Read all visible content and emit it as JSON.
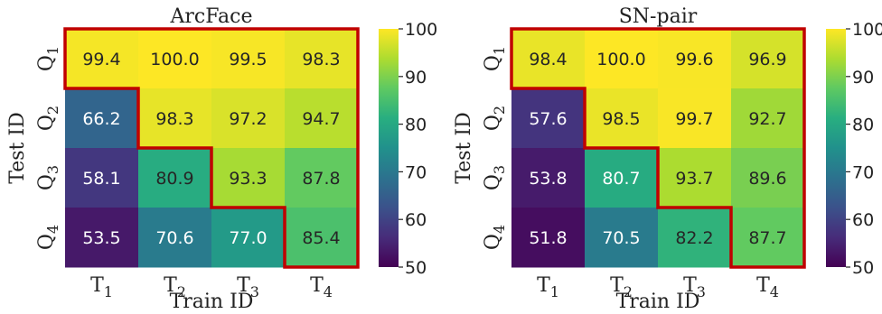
{
  "chart_data": [
    {
      "type": "heatmap",
      "title": "ArcFace",
      "xlabel": "Train ID",
      "ylabel": "Test ID",
      "x_categories": [
        {
          "base": "T",
          "sub": "1"
        },
        {
          "base": "T",
          "sub": "2"
        },
        {
          "base": "T",
          "sub": "3"
        },
        {
          "base": "T",
          "sub": "4"
        }
      ],
      "y_categories": [
        {
          "base": "Q",
          "sub": "1"
        },
        {
          "base": "Q",
          "sub": "2"
        },
        {
          "base": "Q",
          "sub": "3"
        },
        {
          "base": "Q",
          "sub": "4"
        }
      ],
      "values": [
        [
          99.4,
          100.0,
          99.5,
          98.3
        ],
        [
          66.2,
          98.3,
          97.2,
          94.7
        ],
        [
          58.1,
          80.9,
          93.3,
          87.8
        ],
        [
          53.5,
          70.6,
          77.0,
          85.4
        ]
      ],
      "labels": [
        [
          "99.4",
          "100.0",
          "99.5",
          "98.3"
        ],
        [
          "66.2",
          "98.3",
          "97.2",
          "94.7"
        ],
        [
          "58.1",
          "80.9",
          "93.3",
          "87.8"
        ],
        [
          "53.5",
          "70.6",
          "77.0",
          "85.4"
        ]
      ],
      "colorbar": {
        "min": 50,
        "max": 100,
        "ticks": [
          "50",
          "60",
          "70",
          "80",
          "90",
          "100"
        ],
        "colormap": "viridis"
      },
      "highlight": "upper-triangle staircase outline",
      "highlight_color": "#c00000"
    },
    {
      "type": "heatmap",
      "title": "SN-pair",
      "xlabel": "Train ID",
      "ylabel": "Test ID",
      "x_categories": [
        {
          "base": "T",
          "sub": "1"
        },
        {
          "base": "T",
          "sub": "2"
        },
        {
          "base": "T",
          "sub": "3"
        },
        {
          "base": "T",
          "sub": "4"
        }
      ],
      "y_categories": [
        {
          "base": "Q",
          "sub": "1"
        },
        {
          "base": "Q",
          "sub": "2"
        },
        {
          "base": "Q",
          "sub": "3"
        },
        {
          "base": "Q",
          "sub": "4"
        }
      ],
      "values": [
        [
          98.4,
          100.0,
          99.6,
          96.9
        ],
        [
          57.6,
          98.5,
          99.7,
          92.7
        ],
        [
          53.8,
          80.7,
          93.7,
          89.6
        ],
        [
          51.8,
          70.5,
          82.2,
          87.7
        ]
      ],
      "labels": [
        [
          "98.4",
          "100.0",
          "99.6",
          "96.9"
        ],
        [
          "57.6",
          "98.5",
          "99.7",
          "92.7"
        ],
        [
          "53.8",
          "80.7",
          "93.7",
          "89.6"
        ],
        [
          "51.8",
          "70.5",
          "82.2",
          "87.7"
        ]
      ],
      "colorbar": {
        "min": 50,
        "max": 100,
        "ticks": [
          "50",
          "60",
          "70",
          "80",
          "90",
          "100"
        ],
        "colormap": "viridis"
      },
      "highlight": "upper-triangle staircase outline",
      "highlight_color": "#c00000"
    }
  ]
}
